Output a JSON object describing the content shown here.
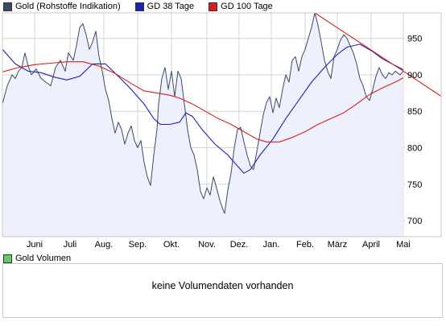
{
  "legend": [
    {
      "label": "Gold (Rohstoffe Indikation)",
      "color": "#3a4a66"
    },
    {
      "label": "GD 38 Tage",
      "color": "#1c22b8"
    },
    {
      "label": "GD 100 Tage",
      "color": "#d81e1e"
    }
  ],
  "volume": {
    "legend_label": "Gold Volumen",
    "legend_color": "#66cc66",
    "message": "keine Volumendaten vorhanden"
  },
  "chart_data": {
    "type": "line",
    "title": "",
    "xlabel": "",
    "ylabel": "",
    "ylim": [
      678,
      985
    ],
    "y_ticks": [
      700,
      750,
      800,
      850,
      900,
      950
    ],
    "x_range": [
      0,
      250
    ],
    "x_ticks": [
      {
        "label": "Juni",
        "x": 20
      },
      {
        "label": "Juli",
        "x": 42
      },
      {
        "label": "Aug.",
        "x": 63
      },
      {
        "label": "Sep.",
        "x": 84
      },
      {
        "label": "Okt.",
        "x": 105
      },
      {
        "label": "Nov.",
        "x": 127
      },
      {
        "label": "Dez.",
        "x": 147
      },
      {
        "label": "Jan.",
        "x": 167
      },
      {
        "label": "Feb.",
        "x": 188
      },
      {
        "label": "März",
        "x": 208
      },
      {
        "label": "April",
        "x": 229
      },
      {
        "label": "Mai",
        "x": 249
      }
    ],
    "grid": true,
    "series": [
      {
        "name": "Gold (Rohstoffe Indikation)",
        "color": "#3a4a66",
        "fill": "#eef0fb",
        "points": [
          [
            0,
            860
          ],
          [
            3,
            885
          ],
          [
            6,
            900
          ],
          [
            8,
            895
          ],
          [
            10,
            905
          ],
          [
            12,
            910
          ],
          [
            14,
            930
          ],
          [
            16,
            912
          ],
          [
            18,
            900
          ],
          [
            21,
            908
          ],
          [
            24,
            895
          ],
          [
            27,
            890
          ],
          [
            30,
            885
          ],
          [
            33,
            910
          ],
          [
            36,
            920
          ],
          [
            39,
            905
          ],
          [
            41,
            930
          ],
          [
            44,
            920
          ],
          [
            46,
            940
          ],
          [
            48,
            965
          ],
          [
            50,
            970
          ],
          [
            52,
            955
          ],
          [
            54,
            935
          ],
          [
            56,
            945
          ],
          [
            58,
            960
          ],
          [
            60,
            925
          ],
          [
            62,
            905
          ],
          [
            64,
            880
          ],
          [
            66,
            865
          ],
          [
            68,
            840
          ],
          [
            70,
            820
          ],
          [
            72,
            835
          ],
          [
            74,
            825
          ],
          [
            76,
            805
          ],
          [
            78,
            820
          ],
          [
            80,
            830
          ],
          [
            82,
            810
          ],
          [
            84,
            800
          ],
          [
            86,
            810
          ],
          [
            88,
            780
          ],
          [
            90,
            760
          ],
          [
            92,
            748
          ],
          [
            94,
            790
          ],
          [
            96,
            825
          ],
          [
            97,
            860
          ],
          [
            99,
            895
          ],
          [
            101,
            910
          ],
          [
            103,
            880
          ],
          [
            105,
            905
          ],
          [
            107,
            870
          ],
          [
            109,
            905
          ],
          [
            111,
            895
          ],
          [
            113,
            860
          ],
          [
            115,
            825
          ],
          [
            117,
            800
          ],
          [
            119,
            790
          ],
          [
            121,
            770
          ],
          [
            123,
            740
          ],
          [
            125,
            730
          ],
          [
            127,
            745
          ],
          [
            129,
            735
          ],
          [
            131,
            760
          ],
          [
            133,
            745
          ],
          [
            135,
            728
          ],
          [
            137,
            715
          ],
          [
            138,
            710
          ],
          [
            140,
            742
          ],
          [
            142,
            765
          ],
          [
            144,
            800
          ],
          [
            146,
            825
          ],
          [
            148,
            828
          ],
          [
            150,
            808
          ],
          [
            152,
            790
          ],
          [
            154,
            775
          ],
          [
            156,
            770
          ],
          [
            158,
            795
          ],
          [
            160,
            820
          ],
          [
            162,
            845
          ],
          [
            164,
            862
          ],
          [
            166,
            870
          ],
          [
            168,
            848
          ],
          [
            170,
            868
          ],
          [
            172,
            855
          ],
          [
            174,
            880
          ],
          [
            176,
            900
          ],
          [
            178,
            890
          ],
          [
            180,
            920
          ],
          [
            182,
            925
          ],
          [
            184,
            905
          ],
          [
            186,
            925
          ],
          [
            188,
            935
          ],
          [
            190,
            950
          ],
          [
            192,
            965
          ],
          [
            194,
            985
          ],
          [
            196,
            968
          ],
          [
            198,
            945
          ],
          [
            200,
            920
          ],
          [
            202,
            905
          ],
          [
            204,
            895
          ],
          [
            206,
            925
          ],
          [
            208,
            935
          ],
          [
            210,
            948
          ],
          [
            212,
            955
          ],
          [
            214,
            950
          ],
          [
            216,
            940
          ],
          [
            218,
            930
          ],
          [
            220,
            915
          ],
          [
            222,
            895
          ],
          [
            224,
            885
          ],
          [
            226,
            870
          ],
          [
            228,
            865
          ],
          [
            230,
            880
          ],
          [
            232,
            898
          ],
          [
            234,
            910
          ],
          [
            236,
            900
          ],
          [
            238,
            895
          ],
          [
            240,
            903
          ],
          [
            242,
            900
          ],
          [
            244,
            905
          ],
          [
            247,
            900
          ],
          [
            249,
            905
          ]
        ]
      },
      {
        "name": "GD 38 Tage",
        "color": "#1c22b8",
        "points": [
          [
            0,
            935
          ],
          [
            8,
            915
          ],
          [
            16,
            905
          ],
          [
            24,
            903
          ],
          [
            32,
            897
          ],
          [
            40,
            893
          ],
          [
            48,
            898
          ],
          [
            56,
            915
          ],
          [
            64,
            915
          ],
          [
            72,
            898
          ],
          [
            80,
            880
          ],
          [
            88,
            860
          ],
          [
            94,
            840
          ],
          [
            98,
            832
          ],
          [
            104,
            832
          ],
          [
            110,
            835
          ],
          [
            114,
            848
          ],
          [
            118,
            843
          ],
          [
            124,
            825
          ],
          [
            132,
            805
          ],
          [
            140,
            790
          ],
          [
            146,
            775
          ],
          [
            150,
            765
          ],
          [
            154,
            770
          ],
          [
            160,
            790
          ],
          [
            168,
            812
          ],
          [
            176,
            840
          ],
          [
            184,
            865
          ],
          [
            192,
            890
          ],
          [
            200,
            910
          ],
          [
            208,
            928
          ],
          [
            214,
            938
          ],
          [
            222,
            942
          ],
          [
            230,
            932
          ],
          [
            236,
            922
          ],
          [
            242,
            915
          ],
          [
            249,
            907
          ]
        ]
      },
      {
        "name": "GD 100 Tage",
        "color": "#d81e1e",
        "points": [
          [
            0,
            904
          ],
          [
            10,
            910
          ],
          [
            20,
            914
          ],
          [
            30,
            916
          ],
          [
            40,
            918
          ],
          [
            50,
            918
          ],
          [
            60,
            912
          ],
          [
            70,
            902
          ],
          [
            80,
            888
          ],
          [
            88,
            878
          ],
          [
            96,
            875
          ],
          [
            104,
            872
          ],
          [
            110,
            868
          ],
          [
            118,
            860
          ],
          [
            126,
            850
          ],
          [
            134,
            840
          ],
          [
            142,
            832
          ],
          [
            150,
            822
          ],
          [
            158,
            812
          ],
          [
            164,
            808
          ],
          [
            172,
            808
          ],
          [
            180,
            814
          ],
          [
            188,
            822
          ],
          [
            196,
            832
          ],
          [
            204,
            840
          ],
          [
            212,
            848
          ],
          [
            220,
            860
          ],
          [
            228,
            873
          ],
          [
            236,
            882
          ],
          [
            244,
            890
          ],
          [
            249,
            896
          ]
        ]
      },
      {
        "name": "",
        "color": "#e02020",
        "points": [
          [
            194,
            985
          ],
          [
            249,
            905
          ],
          [
            275,
            867
          ]
        ]
      }
    ]
  }
}
